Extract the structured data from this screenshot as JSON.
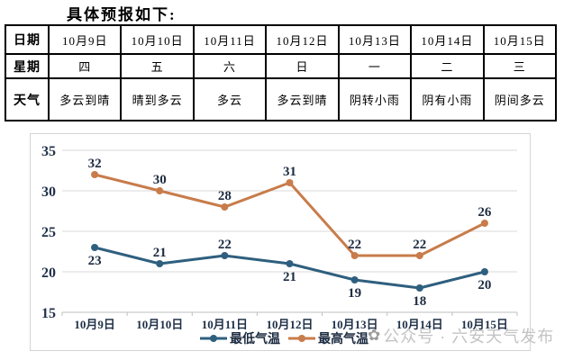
{
  "title": "具体预报如下:",
  "table": {
    "row_headers": [
      "日期",
      "星期",
      "天气"
    ],
    "dates": [
      "10月9日",
      "10月10日",
      "10月11日",
      "10月12日",
      "10月13日",
      "10月14日",
      "10月15日"
    ],
    "weekdays": [
      "四",
      "五",
      "六",
      "日",
      "一",
      "二",
      "三"
    ],
    "weather": [
      "多云到晴",
      "晴到多云",
      "多云",
      "多云到晴",
      "阴转小雨",
      "阴有小雨",
      "阴间多云"
    ]
  },
  "chart_data": {
    "type": "line",
    "title": "",
    "xlabel": "",
    "ylabel": "",
    "categories": [
      "10月9日",
      "10月10日",
      "10月11日",
      "10月12日",
      "10月13日",
      "10月14日",
      "10月15日"
    ],
    "series": [
      {
        "name": "最低气温",
        "values": [
          23,
          21,
          22,
          21,
          19,
          18,
          20
        ],
        "color": "#2E5F7E",
        "label_positions": [
          "below",
          "above",
          "above",
          "below",
          "below",
          "below",
          "below"
        ]
      },
      {
        "name": "最高气温",
        "values": [
          32,
          30,
          28,
          31,
          22,
          22,
          26
        ],
        "color": "#C87C4B",
        "label_positions": [
          "above",
          "above",
          "above",
          "above",
          "above",
          "above",
          "above"
        ]
      }
    ],
    "ylim": [
      15,
      35
    ],
    "yticks": [
      15,
      20,
      25,
      30,
      35
    ],
    "grid": true,
    "gridline_color": "#D9D9D9",
    "axis_line_color": "#BFBFBF",
    "label_color": "#1F3048",
    "legend_position": "bottom"
  },
  "watermark": {
    "logo": "✿",
    "text": "公众号 · 六安天气发布"
  }
}
